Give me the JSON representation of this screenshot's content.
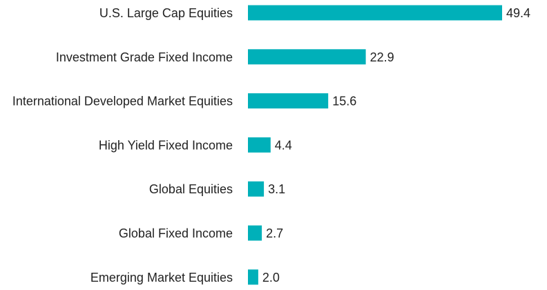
{
  "chart_data": {
    "type": "bar",
    "orientation": "horizontal",
    "title": "",
    "xlabel": "",
    "ylabel": "",
    "categories": [
      "U.S. Large Cap Equities",
      "Investment Grade Fixed Income",
      "International Developed Market Equities",
      "High Yield Fixed Income",
      "Global Equities",
      "Global Fixed Income",
      "Emerging Market Equities"
    ],
    "values": [
      49.4,
      22.9,
      15.6,
      4.4,
      3.1,
      2.7,
      2.0
    ],
    "value_labels": [
      "49.4",
      "22.9",
      "15.6",
      "4.4",
      "3.1",
      "2.7",
      "2.0"
    ],
    "xlim": [
      0,
      49.4
    ],
    "grid": false,
    "legend": "none",
    "bar_color": "#00B0B9"
  }
}
